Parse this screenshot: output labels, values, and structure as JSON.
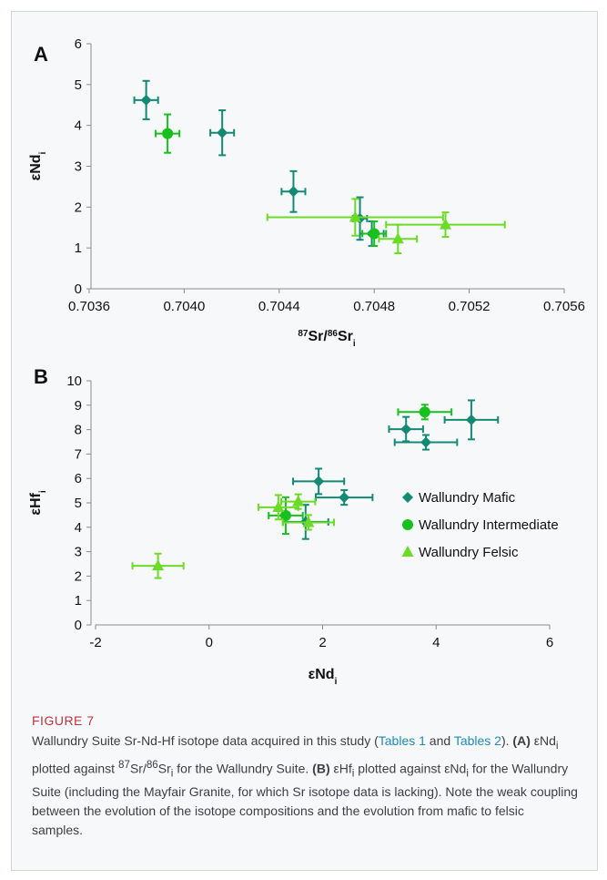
{
  "figure": {
    "label": "FIGURE 7",
    "caption_parts": [
      {
        "t": "Wallundry Suite Sr-Nd-Hf isotope data acquired in this study (",
        "s": "n"
      },
      {
        "t": "Tables 1",
        "s": "link"
      },
      {
        "t": " and ",
        "s": "n"
      },
      {
        "t": "Tables 2",
        "s": "link"
      },
      {
        "t": "). ",
        "s": "n"
      },
      {
        "t": "(A)",
        "s": "b"
      },
      {
        "t": " εNd",
        "s": "n"
      },
      {
        "t": "i",
        "s": "sub"
      },
      {
        "t": " plotted against ",
        "s": "n"
      },
      {
        "t": "87",
        "s": "sup"
      },
      {
        "t": "Sr/",
        "s": "n"
      },
      {
        "t": "86",
        "s": "sup"
      },
      {
        "t": "Sr",
        "s": "n"
      },
      {
        "t": "i",
        "s": "sub"
      },
      {
        "t": " for the Wallundry Suite. ",
        "s": "n"
      },
      {
        "t": "(B)",
        "s": "b"
      },
      {
        "t": " εHf",
        "s": "n"
      },
      {
        "t": "i",
        "s": "sub"
      },
      {
        "t": " plotted against εNd",
        "s": "n"
      },
      {
        "t": "i",
        "s": "sub"
      },
      {
        "t": " for the Wallundry Suite (including the Mayfair Granite, for which Sr isotope data is lacking). Note the weak coupling between the evolution of the isotope compositions and the evolution from mafic to felsic samples.",
        "s": "n"
      }
    ]
  },
  "colors": {
    "mafic": "#138a73",
    "intermediate": "#18c01e",
    "felsic": "#6bdb27",
    "axis": "#8a8a8a",
    "text": "#111111"
  },
  "chart_data": [
    {
      "type": "scatter",
      "panel_label": "A",
      "xlabel_parts": [
        {
          "t": "87",
          "s": "sup"
        },
        {
          "t": "Sr/",
          "s": "n"
        },
        {
          "t": "86",
          "s": "sup"
        },
        {
          "t": "Sr",
          "s": "n"
        },
        {
          "t": "i",
          "s": "sub"
        }
      ],
      "ylabel_parts": [
        {
          "t": "εNd",
          "s": "n"
        },
        {
          "t": "i",
          "s": "sub"
        }
      ],
      "xlim": [
        0.7036,
        0.7056
      ],
      "ylim": [
        0,
        6
      ],
      "x_ticks": [
        0.7036,
        0.704,
        0.7044,
        0.7048,
        0.7052,
        0.7056
      ],
      "x_tick_labels": [
        "0.7036",
        "0.7040",
        "0.7044",
        "0.7048",
        "0.7052",
        "0.7056"
      ],
      "y_ticks": [
        0,
        1,
        2,
        3,
        4,
        5,
        6
      ],
      "y_tick_labels": [
        "0",
        "1",
        "2",
        "3",
        "4",
        "5",
        "6"
      ],
      "grid": false,
      "series": [
        {
          "name": "Wallundry Mafic",
          "marker": "diamond",
          "color": "#138a73",
          "points": [
            {
              "x": 0.70384,
              "y": 4.62,
              "xerr": 5e-05,
              "yerr": 0.47
            },
            {
              "x": 0.70416,
              "y": 3.82,
              "xerr": 5e-05,
              "yerr": 0.55
            },
            {
              "x": 0.70446,
              "y": 2.38,
              "xerr": 5e-05,
              "yerr": 0.5
            },
            {
              "x": 0.70479,
              "y": 1.35,
              "xerr": 5e-05,
              "yerr": 0.3
            },
            {
              "x": 0.70474,
              "y": 1.72,
              "xerr": 3e-05,
              "yerr": 0.52
            }
          ]
        },
        {
          "name": "Wallundry Intermediate",
          "marker": "circle",
          "color": "#18c01e",
          "points": [
            {
              "x": 0.70393,
              "y": 3.8,
              "xerr": 5e-05,
              "yerr": 0.47
            },
            {
              "x": 0.7048,
              "y": 1.35,
              "xerr": 5e-05,
              "yerr": 0.3
            }
          ]
        },
        {
          "name": "Wallundry Felsic",
          "marker": "triangle",
          "color": "#6bdb27",
          "points": [
            {
              "x": 0.70472,
              "y": 1.75,
              "xerr": 0.00037,
              "yerr": 0.45
            },
            {
              "x": 0.7051,
              "y": 1.57,
              "xerr": 0.00025,
              "yerr": 0.3
            },
            {
              "x": 0.7049,
              "y": 1.22,
              "xerr": 8e-05,
              "yerr": 0.35
            }
          ]
        }
      ]
    },
    {
      "type": "scatter",
      "panel_label": "B",
      "xlabel_parts": [
        {
          "t": "εNd",
          "s": "n"
        },
        {
          "t": "i",
          "s": "sub"
        }
      ],
      "ylabel_parts": [
        {
          "t": "εHf",
          "s": "n"
        },
        {
          "t": "i",
          "s": "sub"
        }
      ],
      "xlim": [
        -2,
        6
      ],
      "ylim": [
        0,
        10
      ],
      "x_ticks": [
        -2,
        0,
        2,
        4,
        6
      ],
      "x_tick_labels": [
        "-2",
        "0",
        "2",
        "4",
        "6"
      ],
      "y_ticks": [
        0,
        1,
        2,
        3,
        4,
        5,
        6,
        7,
        8,
        9,
        10
      ],
      "y_tick_labels": [
        "0",
        "1",
        "2",
        "3",
        "4",
        "5",
        "6",
        "7",
        "8",
        "9",
        "10"
      ],
      "grid": false,
      "legend": "right",
      "series": [
        {
          "name": "Wallundry Mafic",
          "marker": "diamond",
          "color": "#138a73",
          "points": [
            {
              "x": 4.62,
              "y": 8.4,
              "xerr": 0.47,
              "yerr": 0.8
            },
            {
              "x": 3.47,
              "y": 8.02,
              "xerr": 0.3,
              "yerr": 0.5
            },
            {
              "x": 3.82,
              "y": 7.48,
              "xerr": 0.55,
              "yerr": 0.3
            },
            {
              "x": 1.93,
              "y": 5.88,
              "xerr": 0.45,
              "yerr": 0.52
            },
            {
              "x": 2.38,
              "y": 5.22,
              "xerr": 0.5,
              "yerr": 0.3
            },
            {
              "x": 1.7,
              "y": 4.22,
              "xerr": 0.4,
              "yerr": 0.7
            }
          ]
        },
        {
          "name": "Wallundry Intermediate",
          "marker": "circle",
          "color": "#18c01e",
          "points": [
            {
              "x": 3.8,
              "y": 8.72,
              "xerr": 0.47,
              "yerr": 0.3
            },
            {
              "x": 1.35,
              "y": 4.48,
              "xerr": 0.3,
              "yerr": 0.75
            }
          ]
        },
        {
          "name": "Wallundry Felsic",
          "marker": "triangle",
          "color": "#6bdb27",
          "points": [
            {
              "x": -0.9,
              "y": 2.42,
              "xerr": 0.45,
              "yerr": 0.5
            },
            {
              "x": 1.22,
              "y": 4.82,
              "xerr": 0.35,
              "yerr": 0.5
            },
            {
              "x": 1.57,
              "y": 5.05,
              "xerr": 0.3,
              "yerr": 0.3
            },
            {
              "x": 1.75,
              "y": 4.2,
              "xerr": 0.45,
              "yerr": 0.3
            }
          ]
        }
      ]
    }
  ]
}
